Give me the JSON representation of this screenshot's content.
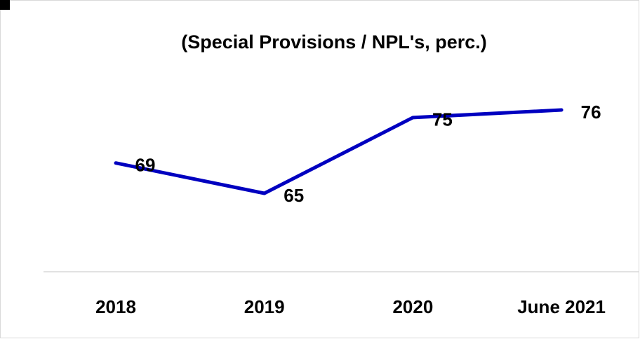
{
  "chart_data": {
    "type": "line",
    "title": "(Special Provisions / NPL's, perc.)",
    "categories": [
      "2018",
      "2019",
      "2020",
      "June 2021"
    ],
    "series": [
      {
        "name": "Special Provisions / NPL's",
        "color": "#0000c0",
        "values": [
          69,
          65,
          75,
          76
        ]
      }
    ]
  }
}
